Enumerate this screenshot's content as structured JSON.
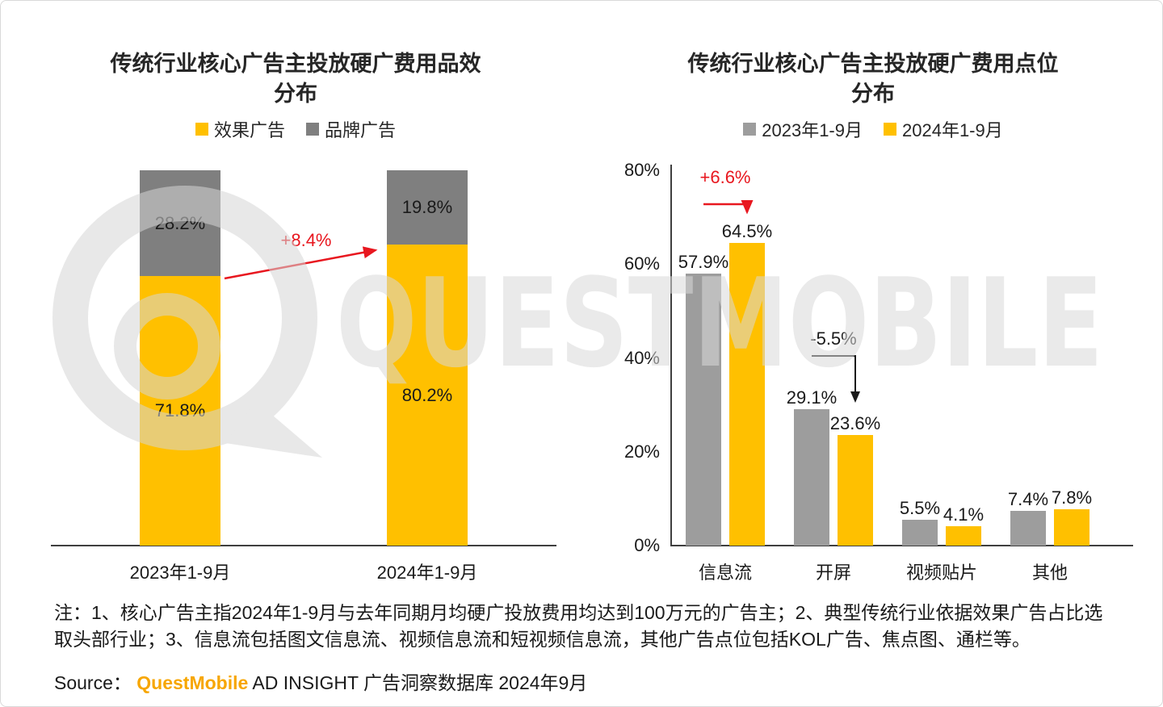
{
  "watermark": {
    "text": "QUESTMOBILE"
  },
  "chart_data": [
    {
      "type": "bar",
      "variant": "stacked-percent",
      "title": "传统行业核心广告主投放硬广费用品效分布",
      "title_lines": [
        "传统行业核心广告主投放硬广费用品效",
        "分布"
      ],
      "categories": [
        "2023年1-9月",
        "2024年1-9月"
      ],
      "series": [
        {
          "name": "效果广告",
          "color": "#FFC000",
          "values": [
            71.8,
            80.2
          ]
        },
        {
          "name": "品牌广告",
          "color": "#7F7F7F",
          "values": [
            28.2,
            19.8
          ]
        }
      ],
      "value_suffix": "%",
      "ylim": [
        0,
        100
      ],
      "legend_position": "top",
      "annotation": {
        "text": "+8.4%",
        "color": "#E8171F"
      }
    },
    {
      "type": "bar",
      "variant": "grouped",
      "title": "传统行业核心广告主投放硬广费用点位分布",
      "title_lines": [
        "传统行业核心广告主投放硬广费用点位",
        "分布"
      ],
      "categories": [
        "信息流",
        "开屏",
        "视频贴片",
        "其他"
      ],
      "series": [
        {
          "name": "2023年1-9月",
          "color": "#9D9D9D",
          "values": [
            57.9,
            29.1,
            5.5,
            7.4
          ]
        },
        {
          "name": "2024年1-9月",
          "color": "#FFC000",
          "values": [
            64.5,
            23.6,
            4.1,
            7.8
          ]
        }
      ],
      "value_suffix": "%",
      "ylim": [
        0,
        80
      ],
      "yticks": [
        0,
        20,
        40,
        60,
        80
      ],
      "legend_position": "top",
      "annotations": [
        {
          "text": "+6.6%",
          "category": "信息流",
          "color": "#E8171F"
        },
        {
          "text": "-5.5%",
          "category": "开屏",
          "color": "#1A1A1A"
        }
      ]
    }
  ],
  "notes": "注：1、核心广告主指2024年1-9月与去年同期月均硬广投放费用均达到100万元的广告主；2、典型传统行业依据效果广告占比选取头部行业；3、信息流包括图文信息流、视频信息流和短视频信息流，其他广告点位包括KOL广告、焦点图、通栏等。",
  "source": {
    "label": "Source：",
    "brand": "QuestMobile",
    "brand_color": "#F7A600",
    "rest": " AD INSIGHT 广告洞察数据库 2024年9月"
  }
}
